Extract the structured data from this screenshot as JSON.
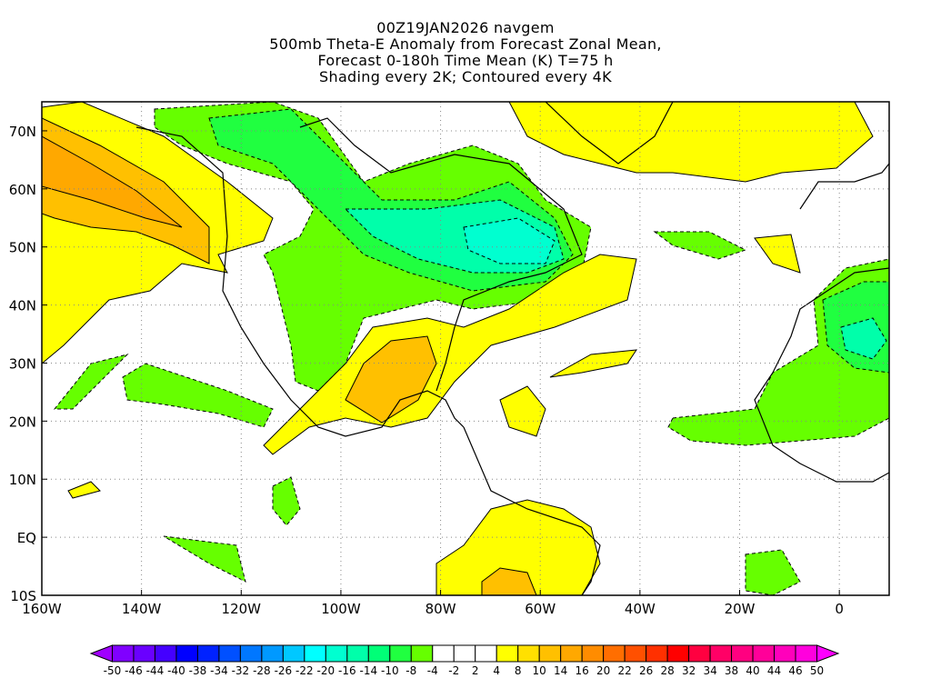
{
  "title_lines": [
    "00Z19JAN2026 navgem",
    "500mb Theta-E Anomaly from Forecast Zonal Mean,",
    "Forecast 0-180h Time Mean (K) T=75 h",
    "Shading every 2K; Contoured every 4K"
  ],
  "lat_labels": [
    "70N",
    "60N",
    "50N",
    "40N",
    "30N",
    "20N",
    "10N",
    "EQ",
    "10S"
  ],
  "lon_labels": [
    "160W",
    "140W",
    "120W",
    "100W",
    "80W",
    "60W",
    "40W",
    "20W",
    "0"
  ],
  "colorbar": {
    "labels": [
      "-50",
      "-46",
      "-44",
      "-40",
      "-38",
      "-34",
      "-32",
      "-28",
      "-26",
      "-22",
      "-20",
      "-16",
      "-14",
      "-10",
      "-8",
      "-4",
      "-2",
      "2",
      "4",
      "8",
      "10",
      "14",
      "16",
      "20",
      "22",
      "26",
      "28",
      "32",
      "34",
      "38",
      "40",
      "44",
      "46",
      "50"
    ],
    "colors": [
      "#a000ff",
      "#8000ff",
      "#6a00ff",
      "#4400ff",
      "#0000ff",
      "#0022ff",
      "#0050ff",
      "#0077ff",
      "#0099ff",
      "#00c8ff",
      "#00ffff",
      "#00ffd0",
      "#00ffaa",
      "#00ff77",
      "#20ff40",
      "#66ff00",
      "#ffffff",
      "#ffffff",
      "#ffffff",
      "#ffff00",
      "#ffe000",
      "#ffc000",
      "#ffa800",
      "#ff8c00",
      "#ff6e00",
      "#ff5000",
      "#ff3000",
      "#ff0000",
      "#ff0040",
      "#ff0066",
      "#ff0080",
      "#ff0099",
      "#ff00bb",
      "#ff00dd",
      "#ff00ff"
    ]
  }
}
